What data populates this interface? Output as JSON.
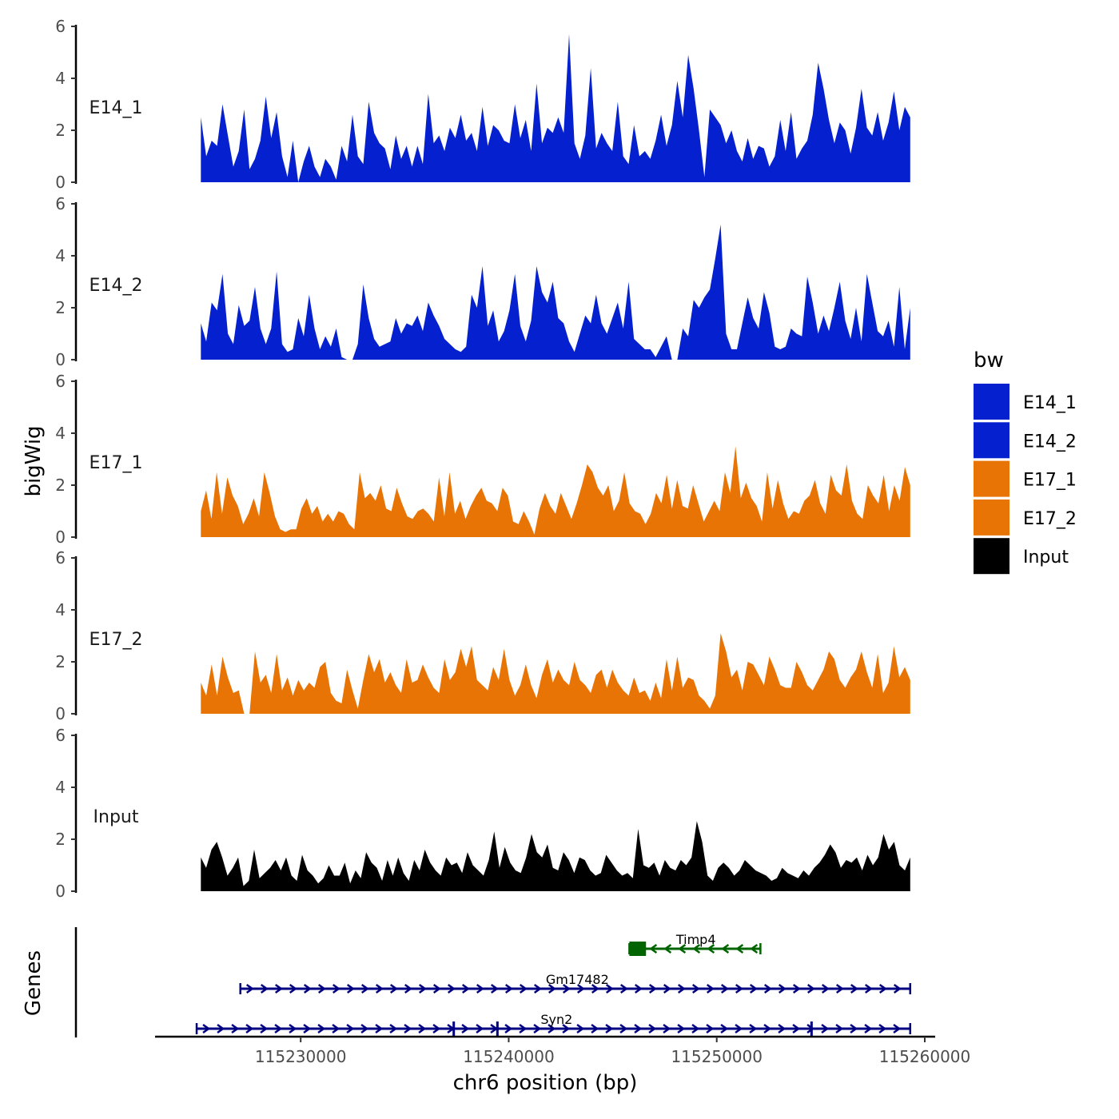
{
  "chart_data": {
    "type": "area",
    "chromosome": "chr6",
    "xlabel": "chr6 position (bp)",
    "ylabel": "bigWig",
    "genes_label": "Genes",
    "xlim": [
      115223000,
      115260500
    ],
    "x_ticks": [
      115230000,
      115240000,
      115250000,
      115260000
    ],
    "x_tick_labels": [
      "115230000",
      "115240000",
      "115250000",
      "115260000"
    ],
    "ylim": [
      0,
      6
    ],
    "y_ticks": [
      0,
      2,
      4,
      6
    ],
    "y_tick_labels": [
      "0",
      "2",
      "4",
      "6"
    ],
    "data_range": [
      115225200,
      115259300
    ],
    "legend": {
      "title": "bw",
      "position": "right",
      "entries": [
        {
          "label": "E14_1",
          "color": "#0521CF"
        },
        {
          "label": "E14_2",
          "color": "#0521CF"
        },
        {
          "label": "E17_1",
          "color": "#E87406"
        },
        {
          "label": "E17_2",
          "color": "#E87406"
        },
        {
          "label": "Input",
          "color": "#000000"
        }
      ]
    },
    "tracks": [
      {
        "name": "E14_1",
        "color": "#0521CF",
        "values": [
          2.5,
          1.0,
          1.6,
          1.4,
          3.0,
          1.8,
          0.6,
          1.2,
          2.8,
          0.5,
          0.9,
          1.6,
          3.3,
          1.7,
          2.7,
          1.0,
          0.2,
          1.6,
          0.0,
          0.8,
          1.4,
          0.6,
          0.2,
          0.9,
          0.6,
          0.1,
          1.4,
          0.8,
          2.6,
          1.0,
          0.7,
          3.1,
          1.9,
          1.5,
          1.3,
          0.5,
          1.8,
          0.9,
          1.4,
          0.6,
          1.4,
          0.7,
          3.4,
          1.5,
          1.8,
          1.2,
          2.1,
          1.7,
          2.6,
          1.6,
          1.9,
          1.2,
          2.9,
          1.4,
          2.2,
          2.0,
          1.6,
          1.5,
          3.0,
          1.7,
          2.4,
          1.2,
          3.8,
          1.5,
          2.1,
          1.9,
          2.5,
          1.9,
          5.7,
          1.5,
          0.9,
          1.8,
          4.4,
          1.3,
          1.9,
          1.5,
          1.2,
          3.1,
          1.0,
          0.7,
          2.2,
          1.0,
          1.2,
          0.9,
          1.6,
          2.6,
          1.4,
          2.2,
          3.9,
          2.5,
          4.9,
          3.6,
          2.0,
          0.2,
          2.8,
          2.5,
          2.2,
          1.5,
          2.0,
          1.2,
          0.8,
          1.7,
          0.9,
          1.4,
          1.3,
          0.6,
          1.0,
          2.4,
          1.2,
          2.7,
          0.9,
          1.3,
          1.6,
          2.6,
          4.6,
          3.6,
          2.4,
          1.5,
          2.3,
          2.0,
          1.1,
          2.1,
          3.6,
          2.1,
          1.8,
          2.7,
          1.6,
          2.3,
          3.5,
          2.0,
          2.9,
          2.5
        ]
      },
      {
        "name": "E14_2",
        "color": "#0521CF",
        "values": [
          1.4,
          0.7,
          2.2,
          1.9,
          3.3,
          1.0,
          0.6,
          2.1,
          1.3,
          1.5,
          2.8,
          1.2,
          0.6,
          1.2,
          3.4,
          0.6,
          0.3,
          0.4,
          1.6,
          0.9,
          2.5,
          1.2,
          0.4,
          0.9,
          0.5,
          1.2,
          0.1,
          0.0,
          0.0,
          0.6,
          2.9,
          1.6,
          0.8,
          0.5,
          0.6,
          0.7,
          1.6,
          1.0,
          1.4,
          1.3,
          1.7,
          1.1,
          2.2,
          1.7,
          1.3,
          0.8,
          0.6,
          0.4,
          0.3,
          0.5,
          2.5,
          2.0,
          3.6,
          1.3,
          1.9,
          0.7,
          1.1,
          1.9,
          3.3,
          1.3,
          0.7,
          1.5,
          3.6,
          2.6,
          2.2,
          3.0,
          1.6,
          1.4,
          0.7,
          0.3,
          1.0,
          1.7,
          1.4,
          2.5,
          1.4,
          1.0,
          1.6,
          2.2,
          1.2,
          3.0,
          0.8,
          0.6,
          0.4,
          0.4,
          0.1,
          0.5,
          0.9,
          0.0,
          0.0,
          1.2,
          0.9,
          2.3,
          2.0,
          2.4,
          2.7,
          3.9,
          5.2,
          1.0,
          0.4,
          0.4,
          1.4,
          2.4,
          1.6,
          1.2,
          2.6,
          1.8,
          0.5,
          0.4,
          0.5,
          1.2,
          1.0,
          0.9,
          3.2,
          2.2,
          1.0,
          1.7,
          1.1,
          2.0,
          3.0,
          1.5,
          0.8,
          2.0,
          0.7,
          3.3,
          2.2,
          1.1,
          0.9,
          1.5,
          0.5,
          2.8,
          0.4,
          2.0
        ]
      },
      {
        "name": "E17_1",
        "color": "#E87406",
        "values": [
          1.0,
          1.8,
          0.7,
          2.5,
          0.9,
          2.3,
          1.6,
          1.2,
          0.5,
          0.9,
          1.5,
          0.8,
          2.5,
          1.7,
          0.8,
          0.3,
          0.2,
          0.3,
          0.3,
          1.1,
          1.5,
          0.9,
          1.2,
          0.6,
          0.9,
          0.6,
          1.0,
          0.9,
          0.5,
          0.3,
          2.5,
          1.5,
          1.7,
          1.4,
          2.0,
          1.1,
          1.0,
          1.9,
          1.3,
          0.8,
          0.7,
          1.0,
          1.1,
          0.9,
          0.6,
          2.3,
          0.8,
          2.5,
          0.9,
          1.4,
          0.7,
          1.2,
          1.6,
          1.9,
          1.4,
          1.3,
          1.0,
          1.9,
          1.6,
          0.6,
          0.5,
          1.0,
          0.6,
          0.1,
          1.1,
          1.7,
          1.2,
          0.9,
          1.7,
          1.2,
          0.7,
          1.3,
          2.0,
          2.8,
          2.5,
          1.9,
          1.6,
          2.0,
          1.0,
          1.4,
          2.5,
          1.3,
          1.0,
          0.9,
          0.5,
          0.9,
          1.7,
          1.3,
          2.4,
          1.1,
          2.2,
          1.2,
          1.1,
          2.0,
          1.3,
          0.6,
          1.0,
          1.4,
          1.0,
          2.5,
          1.7,
          3.5,
          1.5,
          2.1,
          1.5,
          1.2,
          0.6,
          2.5,
          1.1,
          2.2,
          1.3,
          0.7,
          1.0,
          0.9,
          1.4,
          1.6,
          2.2,
          1.3,
          0.9,
          2.4,
          1.8,
          1.6,
          2.8,
          1.4,
          0.9,
          0.7,
          2.0,
          1.6,
          1.3,
          2.4,
          1.0,
          2.0,
          1.4,
          2.7,
          2.0
        ]
      },
      {
        "name": "E17_2",
        "color": "#E87406",
        "values": [
          1.2,
          0.7,
          1.9,
          0.7,
          2.2,
          1.4,
          0.8,
          0.9,
          0.0,
          0.0,
          2.4,
          1.2,
          1.5,
          0.8,
          2.3,
          0.9,
          1.4,
          0.7,
          1.3,
          0.9,
          1.2,
          1.0,
          1.8,
          2.0,
          0.8,
          0.5,
          0.4,
          1.7,
          0.9,
          0.2,
          1.3,
          2.3,
          1.6,
          2.1,
          1.2,
          1.6,
          1.1,
          0.8,
          2.1,
          1.2,
          1.3,
          1.9,
          1.4,
          1.0,
          0.8,
          2.1,
          1.3,
          1.6,
          2.5,
          1.8,
          2.6,
          1.3,
          1.1,
          0.9,
          1.8,
          1.3,
          2.5,
          1.3,
          0.7,
          1.1,
          1.9,
          1.1,
          0.6,
          1.5,
          2.1,
          1.2,
          1.7,
          1.3,
          1.1,
          2.0,
          1.3,
          1.1,
          0.8,
          1.5,
          1.7,
          1.0,
          1.7,
          1.2,
          0.9,
          0.7,
          1.4,
          0.8,
          0.9,
          0.5,
          1.2,
          0.6,
          2.1,
          0.9,
          2.2,
          1.0,
          1.4,
          1.3,
          0.7,
          0.5,
          0.2,
          0.7,
          3.1,
          2.4,
          1.4,
          1.7,
          0.9,
          2.0,
          1.9,
          1.5,
          1.1,
          2.2,
          1.7,
          1.1,
          1.0,
          1.0,
          2.0,
          1.6,
          1.1,
          0.9,
          1.3,
          1.7,
          2.4,
          2.1,
          1.3,
          1.0,
          1.4,
          1.7,
          2.4,
          1.6,
          1.0,
          2.3,
          0.8,
          1.2,
          2.6,
          1.4,
          1.8,
          1.3
        ]
      },
      {
        "name": "Input",
        "color": "#000000",
        "values": [
          1.3,
          0.9,
          1.6,
          1.9,
          1.3,
          0.6,
          0.9,
          1.3,
          0.2,
          0.4,
          1.6,
          0.5,
          0.7,
          0.9,
          1.2,
          0.8,
          1.3,
          0.6,
          0.4,
          1.4,
          0.8,
          0.6,
          0.3,
          0.5,
          1.0,
          0.6,
          0.6,
          1.1,
          0.3,
          0.8,
          0.5,
          1.5,
          1.1,
          0.9,
          0.4,
          1.2,
          0.6,
          1.3,
          0.7,
          0.4,
          1.2,
          0.8,
          1.6,
          1.1,
          0.8,
          0.6,
          1.3,
          1.0,
          1.1,
          0.7,
          1.5,
          1.0,
          0.8,
          0.6,
          1.2,
          2.3,
          0.9,
          1.7,
          1.1,
          0.8,
          0.7,
          1.3,
          2.2,
          1.5,
          1.3,
          1.8,
          0.9,
          0.8,
          1.5,
          1.2,
          0.7,
          1.3,
          1.2,
          0.8,
          0.6,
          0.7,
          1.4,
          1.1,
          0.8,
          0.6,
          0.7,
          0.5,
          2.4,
          1.0,
          0.9,
          1.1,
          0.6,
          1.2,
          0.9,
          0.8,
          1.2,
          1.0,
          1.3,
          2.7,
          1.9,
          0.6,
          0.4,
          0.9,
          1.1,
          0.9,
          0.6,
          0.8,
          1.2,
          1.0,
          0.8,
          0.7,
          0.6,
          0.4,
          0.5,
          0.9,
          0.7,
          0.6,
          0.5,
          0.8,
          0.6,
          0.9,
          1.1,
          1.4,
          1.8,
          1.5,
          0.9,
          1.2,
          1.1,
          1.3,
          0.8,
          1.4,
          1.0,
          1.3,
          2.2,
          1.6,
          1.9,
          1.0,
          0.8,
          1.3
        ]
      }
    ],
    "genes": [
      {
        "name": "Timp4",
        "strand": "-",
        "color": "#006400",
        "start": 115245800,
        "end": 115252100,
        "exons": [
          [
            115245800,
            115246600
          ]
        ]
      },
      {
        "name": "Gm17482",
        "strand": "+",
        "color": "#000080",
        "start": 115227100,
        "end": 115259300,
        "exons": []
      },
      {
        "name": "Syn2",
        "strand": "+",
        "color": "#000080",
        "start": 115225000,
        "end": 115259300,
        "exons": [
          [
            115237300,
            115237400
          ],
          [
            115239400,
            115239500
          ],
          [
            115254500,
            115254600
          ]
        ]
      }
    ]
  }
}
